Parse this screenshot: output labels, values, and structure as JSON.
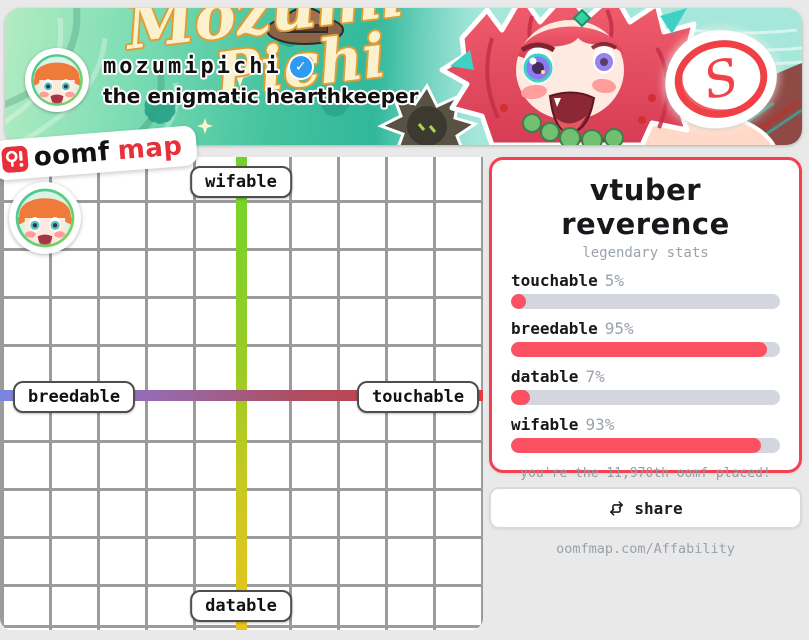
{
  "banner": {
    "script_line1": "Mozumi",
    "script_line2": "Pichi",
    "username": "mozumipichi",
    "subtitle": "the enigmatic hearthkeeper",
    "grade": "S"
  },
  "logo": {
    "word_black": "oomf",
    "word_red": "map"
  },
  "icons": {
    "logo": "map-pin-icon",
    "verified": "verified-badge-icon",
    "share": "retweet-icon",
    "marker": "user-avatar",
    "grade": "grade-circle-icon"
  },
  "map": {
    "label_top": "wifable",
    "label_bottom": "datable",
    "label_left": "breedable",
    "label_right": "touchable",
    "axis_top_color": "#6fd42d",
    "axis_bottom_color": "#e9c51d",
    "axis_left_color": "#7a85de",
    "axis_right_color": "#ea3a42"
  },
  "stats_card": {
    "title": "vtuber reverence",
    "subtitle": "legendary stats",
    "border_color": "#f4404f",
    "accent_color": "#fb5163",
    "track_color": "#d3d6dd",
    "stats": [
      {
        "label": "touchable",
        "value": "5%",
        "percent": 5
      },
      {
        "label": "breedable",
        "value": "95%",
        "percent": 95
      },
      {
        "label": "datable",
        "value": "7%",
        "percent": 7
      },
      {
        "label": "wifable",
        "value": "93%",
        "percent": 93
      }
    ],
    "footer": "you're the 11,970th oomf placed!"
  },
  "share": {
    "label": "share"
  },
  "footer_url": "oomfmap.com/Affability"
}
